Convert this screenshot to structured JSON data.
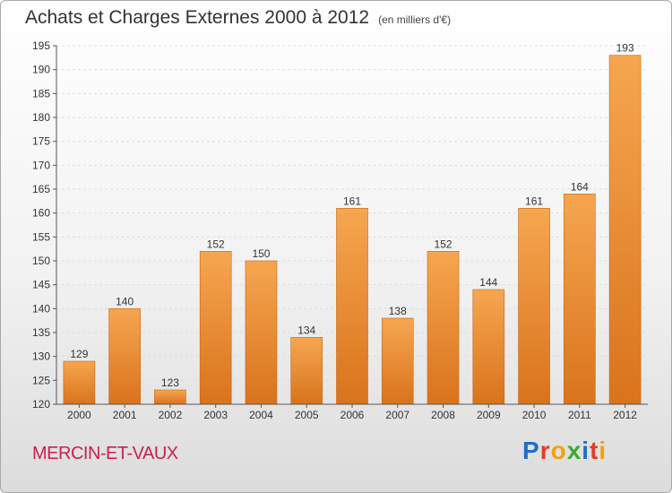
{
  "chart_data": {
    "type": "bar",
    "title": "Achats et Charges Externes 2000 à 2012",
    "subtitle": "(en milliers d'€)",
    "categories": [
      "2000",
      "2001",
      "2002",
      "2003",
      "2004",
      "2005",
      "2006",
      "2007",
      "2008",
      "2009",
      "2010",
      "2011",
      "2012"
    ],
    "values": [
      129,
      140,
      123,
      152,
      150,
      134,
      161,
      138,
      152,
      144,
      161,
      164,
      193
    ],
    "ylim": [
      120,
      195
    ],
    "yticks": [
      120,
      125,
      130,
      135,
      140,
      145,
      150,
      155,
      160,
      165,
      170,
      175,
      180,
      185,
      190,
      195
    ],
    "grid": true,
    "colors": {
      "bar_light": "#f6a650",
      "bar_dark": "#d9731c",
      "axis": "#555555"
    }
  },
  "footer": {
    "commune": "MERCIN-ET-VAUX",
    "brand": "Proxiti",
    "brand_colors": [
      "#1f6fc4",
      "#e23b2b",
      "#f2a20c",
      "#3aaa35",
      "#1f6fc4",
      "#e23b2b",
      "#f2a20c"
    ]
  }
}
